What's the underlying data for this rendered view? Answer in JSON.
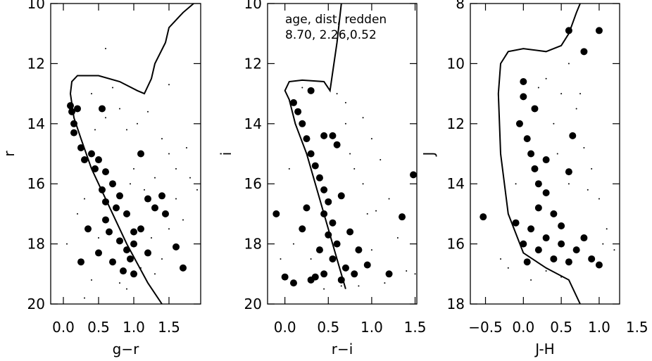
{
  "chart_data": [
    {
      "type": "scatter",
      "xlabel": "g−r",
      "ylabel": "r",
      "xlim": [
        -0.18,
        1.95
      ],
      "ylim": [
        20,
        10
      ],
      "xticks": [
        {
          "value": 0,
          "label": "0.0"
        },
        {
          "value": 0.5,
          "label": "0.5"
        },
        {
          "value": 1,
          "label": "1.0"
        },
        {
          "value": 1.5,
          "label": "1.5"
        }
      ],
      "yticks": [
        10,
        12,
        14,
        16,
        18,
        20
      ],
      "series": [
        {
          "type": "scatter",
          "color": "#000000",
          "x": [
            0.4,
            0.6,
            1.2,
            1.4,
            1.5,
            1.6,
            1.8,
            0.9,
            1.3,
            1.5,
            1.7,
            0.3,
            0.2,
            0.4,
            0.8,
            1.3,
            1.1,
            1.6,
            0.8,
            1.0,
            1.9,
            0.05,
            0.7,
            1.05,
            1.75,
            0.5,
            1.25,
            0.95,
            1.4,
            0.3,
            0.6,
            1.5,
            0.9,
            1.15,
            0.45
          ],
          "values": [
            13.0,
            13.8,
            13.6,
            14.5,
            15.0,
            15.5,
            15.8,
            14.2,
            15.8,
            17.5,
            17.2,
            16.5,
            17.0,
            19.2,
            19.3,
            19.0,
            18.8,
            16.5,
            13.5,
            15.5,
            16.2,
            18.0,
            12.8,
            14.0,
            14.8,
            17.8,
            17.8,
            16.0,
            18.5,
            19.8,
            11.5,
            12.7,
            19.5,
            16.2,
            14.2
          ]
        },
        {
          "type": "scatter",
          "color": "#000000",
          "x": [
            0.1,
            0.12,
            0.15,
            0.2,
            0.15,
            0.25,
            0.3,
            0.4,
            0.45,
            0.5,
            0.6,
            0.55,
            0.7,
            0.8,
            0.75,
            0.9,
            0.6,
            0.65,
            0.8,
            0.9,
            1.0,
            1.1,
            1.2,
            1.3,
            0.5,
            0.7,
            0.85,
            1.0,
            0.25,
            1.4,
            1.45,
            0.55,
            1.1,
            1.0,
            0.95,
            1.6,
            1.7,
            0.35,
            1.2,
            0.6
          ],
          "values": [
            13.4,
            13.6,
            14.0,
            13.5,
            14.3,
            14.8,
            15.2,
            15.0,
            15.5,
            15.2,
            15.6,
            16.2,
            16.0,
            16.4,
            16.8,
            17.0,
            17.2,
            17.6,
            17.9,
            18.2,
            18.0,
            17.5,
            16.5,
            16.8,
            18.3,
            18.6,
            18.9,
            19.0,
            18.6,
            16.4,
            17.0,
            13.5,
            15.0,
            17.6,
            18.5,
            18.1,
            18.8,
            17.5,
            18.3,
            16.6
          ]
        },
        {
          "type": "line",
          "color": "#000000",
          "x": [
            1.4,
            1.2,
            0.9,
            0.6,
            0.4,
            0.25,
            0.15,
            0.1,
            0.12,
            0.2,
            0.5,
            0.8,
            1.05,
            1.15,
            1.25,
            1.3,
            1.45,
            1.5,
            1.7,
            1.85
          ],
          "values": [
            20,
            19.3,
            18,
            16.5,
            15.5,
            14.5,
            13.8,
            13,
            12.6,
            12.4,
            12.4,
            12.6,
            12.9,
            13.0,
            12.5,
            12,
            11.3,
            10.8,
            10.3,
            10.0
          ]
        }
      ]
    },
    {
      "type": "scatter",
      "xlabel": "r−i",
      "ylabel": "i",
      "annotations": [
        "age, dist, redden",
        "8.70, 2.26,0.52"
      ],
      "xlim": [
        -0.2,
        1.52
      ],
      "ylim": [
        20,
        10
      ],
      "xticks": [
        {
          "value": 0,
          "label": "0.0"
        },
        {
          "value": 0.5,
          "label": "0.5"
        },
        {
          "value": 1,
          "label": "1.0"
        },
        {
          "value": 1.5,
          "label": "1.5"
        }
      ],
      "yticks": [
        10,
        12,
        14,
        16,
        18,
        20
      ],
      "series": [
        {
          "type": "scatter",
          "color": "#000000",
          "x": [
            0.2,
            0.7,
            0.9,
            1.0,
            1.1,
            0.9,
            1.2,
            1.3,
            1.0,
            0.8,
            0.7,
            1.4,
            1.5,
            0.05,
            0.1,
            -0.05,
            0.95,
            1.15,
            0.6,
            0.85,
            1.05,
            0.75,
            0.3,
            0.65,
            0.45
          ],
          "values": [
            12.8,
            13.3,
            13.8,
            14.5,
            15.2,
            16.0,
            16.5,
            17.8,
            18.2,
            15.5,
            14.0,
            18.9,
            19.0,
            15.5,
            18.0,
            18.5,
            17.0,
            19.3,
            13.0,
            19.4,
            16.9,
            15.0,
            18.5,
            19.4,
            19.5
          ]
        },
        {
          "type": "scatter",
          "color": "#000000",
          "x": [
            0.1,
            0.15,
            0.2,
            0.25,
            0.3,
            0.35,
            0.4,
            0.45,
            0.5,
            0.45,
            0.55,
            0.5,
            0.6,
            0.4,
            0.55,
            0.7,
            0.45,
            0.35,
            0.65,
            0.8,
            0.3,
            0.45,
            0.55,
            0.6,
            0.25,
            0.2,
            0.75,
            0.85,
            0.1,
            0.0,
            -0.1,
            1.35,
            1.48,
            1.2,
            0.95,
            0.3,
            0.65
          ],
          "values": [
            13.3,
            13.6,
            14.0,
            14.5,
            15.0,
            15.4,
            15.8,
            16.2,
            16.6,
            17.0,
            17.3,
            17.7,
            18.0,
            18.2,
            18.5,
            18.8,
            19.0,
            19.1,
            19.2,
            19.0,
            12.9,
            14.4,
            14.4,
            14.7,
            16.8,
            17.5,
            17.6,
            18.2,
            19.3,
            19.1,
            17.0,
            17.1,
            15.7,
            19.0,
            18.7,
            19.2,
            16.4
          ]
        },
        {
          "type": "line",
          "color": "#000000",
          "x": [
            0.7,
            0.55,
            0.4,
            0.25,
            0.12,
            0.05,
            0.0,
            0.05,
            0.2,
            0.45,
            0.52,
            0.55,
            0.6,
            0.65
          ],
          "values": [
            19.5,
            18,
            16.5,
            15,
            14,
            13.2,
            12.9,
            12.6,
            12.55,
            12.6,
            12.9,
            12.3,
            11.3,
            10
          ]
        }
      ]
    },
    {
      "type": "scatter",
      "xlabel": "J-H",
      "ylabel": "J",
      "xlim": [
        -0.7,
        1.27
      ],
      "ylim": [
        18,
        8
      ],
      "xticks": [
        {
          "value": -0.5,
          "label": "−0.5"
        },
        {
          "value": 0,
          "label": "0.0"
        },
        {
          "value": 0.5,
          "label": "0.5"
        },
        {
          "value": 1,
          "label": "1.0"
        },
        {
          "value": 1.5,
          "label": "1.5"
        }
      ],
      "yticks": [
        8,
        10,
        12,
        14,
        16,
        18
      ],
      "series": [
        {
          "type": "scatter",
          "color": "#000000",
          "x": [
            0.3,
            0.5,
            0.7,
            0.4,
            0.8,
            0.9,
            1.0,
            1.1,
            1.2,
            -0.2,
            0.1,
            0.5,
            0.3,
            0.6,
            -0.1,
            1.3,
            0.85,
            0.2,
            0.6,
            -0.3,
            0.75,
            1.05,
            0.45
          ],
          "values": [
            10.5,
            11.0,
            11.5,
            12.0,
            12.8,
            13.5,
            14.5,
            15.5,
            16.2,
            16.8,
            17.2,
            17.1,
            16.9,
            14.0,
            14.0,
            16.3,
            14.2,
            10.8,
            10.0,
            16.5,
            11.0,
            16.0,
            13.0
          ]
        },
        {
          "type": "scatter",
          "color": "#000000",
          "x": [
            0.0,
            0.0,
            0.6,
            1.0,
            0.8,
            0.05,
            0.1,
            0.15,
            0.2,
            0.3,
            0.2,
            0.4,
            0.1,
            0.3,
            0.5,
            0.7,
            0.9,
            0.2,
            0.4,
            0.6,
            0.0,
            -0.1,
            -0.53,
            1.3,
            0.65,
            0.6,
            0.5,
            0.8,
            0.3,
            -0.05,
            0.15,
            1.0,
            0.05
          ],
          "values": [
            10.6,
            11.1,
            8.9,
            8.9,
            9.6,
            12.5,
            13.0,
            13.5,
            14.0,
            14.3,
            14.8,
            15.0,
            15.5,
            15.8,
            16.0,
            16.2,
            16.5,
            16.2,
            16.5,
            16.6,
            16.0,
            15.3,
            15.1,
            17.0,
            12.4,
            13.6,
            15.4,
            15.8,
            13.2,
            12.0,
            11.5,
            16.7,
            16.6
          ]
        },
        {
          "type": "line",
          "color": "#000000",
          "x": [
            0.75,
            0.6,
            0.3,
            0.0,
            -0.2,
            -0.3,
            -0.33,
            -0.3,
            -0.2,
            0.0,
            0.3,
            0.5,
            0.6,
            0.7,
            0.75
          ],
          "values": [
            18,
            17.2,
            16.8,
            16.3,
            15,
            13,
            11,
            10,
            9.6,
            9.5,
            9.6,
            9.4,
            9.0,
            8.3,
            8
          ]
        }
      ]
    }
  ]
}
